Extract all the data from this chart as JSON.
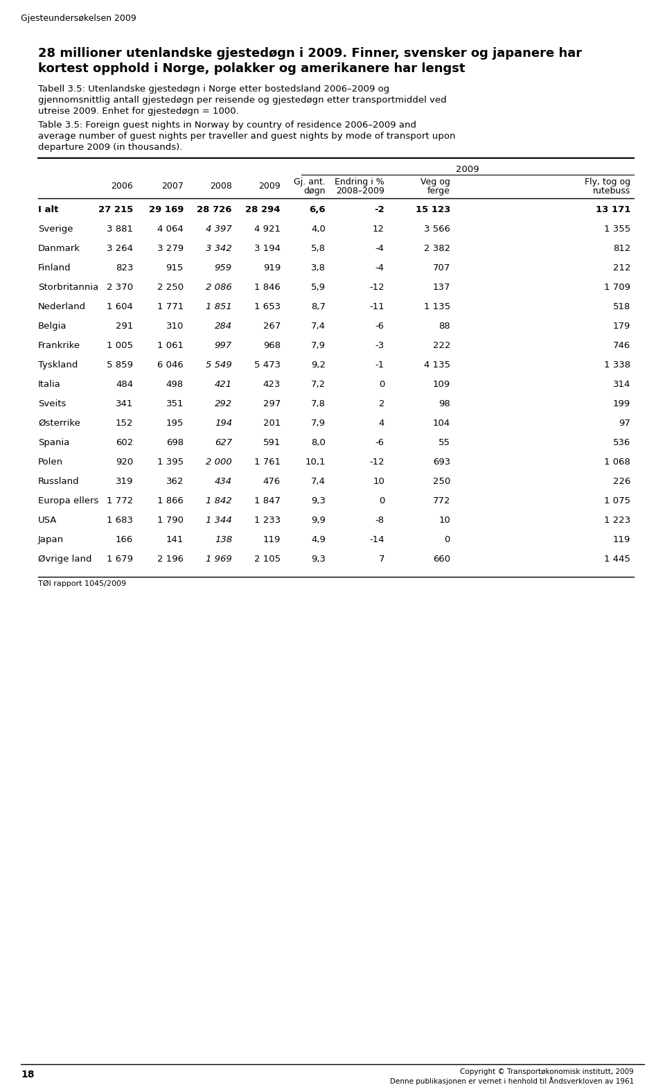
{
  "page_header": "Gjesteundersøkelsen 2009",
  "title_line1": "28 millioner utenlandske gjestedøgn i 2009. Finner, svensker og japanere har",
  "title_line2": "kortest opphold i Norge, polakker og amerikanere har lengst",
  "caption_no_lines": [
    "Tabell 3.5: Utenlandske gjestedøgn i Norge etter bostedsland 2006–2009 og",
    "gjennomsnittlig antall gjestedøgn per reisende og gjestedøgn etter transportmiddel ved",
    "utreise 2009. Enhet for gjestedøgn = 1000."
  ],
  "caption_en_lines": [
    "Table 3.5: Foreign guest nights in Norway by country of residence 2006–2009 and",
    "average number of guest nights per traveller and guest nights by mode of transport upon",
    "departure 2009 (in thousands)."
  ],
  "span_label": "2009",
  "col_headers": [
    "",
    "2006",
    "2007",
    "2008",
    "2009",
    "Gj. ant.\ndøgn",
    "Endring i %\n2008–2009",
    "Veg og\nferge",
    "Fly, tog og\nrutebuss"
  ],
  "rows": [
    [
      "I alt",
      "27 215",
      "29 169",
      "28 726",
      "28 294",
      "6,6",
      "-2",
      "15 123",
      "13 171"
    ],
    [
      "Sverige",
      "3 881",
      "4 064",
      "4 397",
      "4 921",
      "4,0",
      "12",
      "3 566",
      "1 355"
    ],
    [
      "Danmark",
      "3 264",
      "3 279",
      "3 342",
      "3 194",
      "5,8",
      "-4",
      "2 382",
      "812"
    ],
    [
      "Finland",
      "823",
      "915",
      "959",
      "919",
      "3,8",
      "-4",
      "707",
      "212"
    ],
    [
      "Storbritannia",
      "2 370",
      "2 250",
      "2 086",
      "1 846",
      "5,9",
      "-12",
      "137",
      "1 709"
    ],
    [
      "Nederland",
      "1 604",
      "1 771",
      "1 851",
      "1 653",
      "8,7",
      "-11",
      "1 135",
      "518"
    ],
    [
      "Belgia",
      "291",
      "310",
      "284",
      "267",
      "7,4",
      "-6",
      "88",
      "179"
    ],
    [
      "Frankrike",
      "1 005",
      "1 061",
      "997",
      "968",
      "7,9",
      "-3",
      "222",
      "746"
    ],
    [
      "Tyskland",
      "5 859",
      "6 046",
      "5 549",
      "5 473",
      "9,2",
      "-1",
      "4 135",
      "1 338"
    ],
    [
      "Italia",
      "484",
      "498",
      "421",
      "423",
      "7,2",
      "0",
      "109",
      "314"
    ],
    [
      "Sveits",
      "341",
      "351",
      "292",
      "297",
      "7,8",
      "2",
      "98",
      "199"
    ],
    [
      "Østerrike",
      "152",
      "195",
      "194",
      "201",
      "7,9",
      "4",
      "104",
      "97"
    ],
    [
      "Spania",
      "602",
      "698",
      "627",
      "591",
      "8,0",
      "-6",
      "55",
      "536"
    ],
    [
      "Polen",
      "920",
      "1 395",
      "2 000",
      "1 761",
      "10,1",
      "-12",
      "693",
      "1 068"
    ],
    [
      "Russland",
      "319",
      "362",
      "434",
      "476",
      "7,4",
      "10",
      "250",
      "226"
    ],
    [
      "Europa ellers",
      "1 772",
      "1 866",
      "1 842",
      "1 847",
      "9,3",
      "0",
      "772",
      "1 075"
    ],
    [
      "USA",
      "1 683",
      "1 790",
      "1 344",
      "1 233",
      "9,9",
      "-8",
      "10",
      "1 223"
    ],
    [
      "Japan",
      "166",
      "141",
      "138",
      "119",
      "4,9",
      "-14",
      "0",
      "119"
    ],
    [
      "Øvrige land",
      "1 679",
      "2 196",
      "1 969",
      "2 105",
      "9,3",
      "7",
      "660",
      "1 445"
    ]
  ],
  "italic_col_indices": [
    3,
    4
  ],
  "footnote": "TØI rapport 1045/2009",
  "page_number": "18",
  "copyright_line1": "Copyright © Transportøkonomisk institutt, 2009",
  "copyright_line2": "Denne publikasjonen er vernet i henhold til Åndsverkloven av 1961"
}
